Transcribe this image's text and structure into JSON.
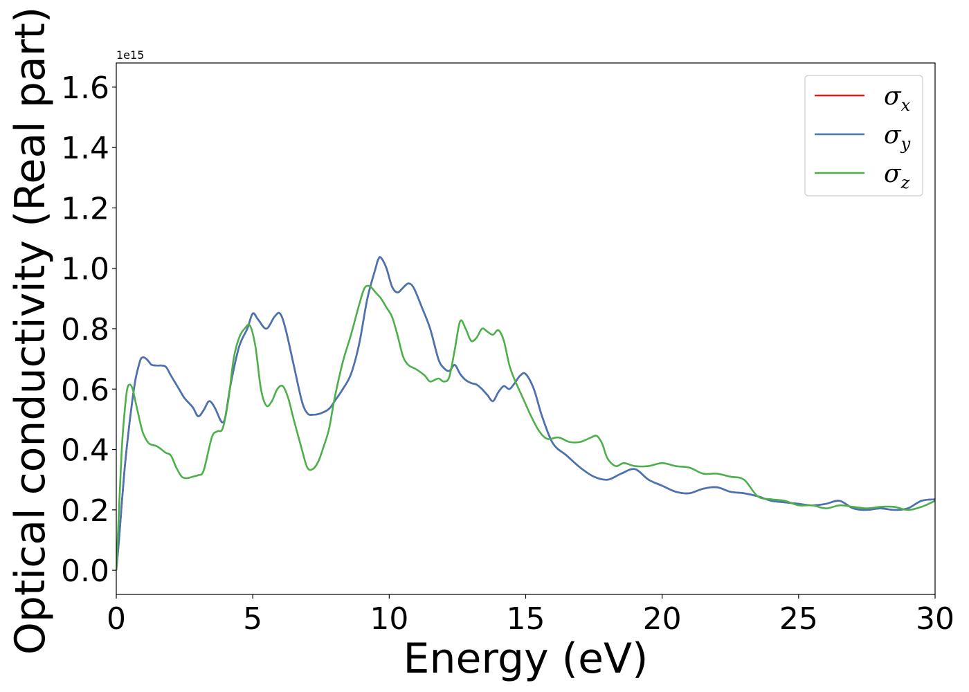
{
  "chart_data": {
    "type": "line",
    "xlabel": "Energy (eV)",
    "ylabel": "Optical conductivity (Real part)",
    "y_offset_label": "1e15",
    "xlim": [
      0,
      30
    ],
    "ylim": [
      -0.08,
      1.68
    ],
    "xticks": [
      0,
      5,
      10,
      15,
      20,
      25,
      30
    ],
    "xtick_labels": [
      "0",
      "5",
      "10",
      "15",
      "20",
      "25",
      "30"
    ],
    "yticks": [
      0.0,
      0.2,
      0.4,
      0.6,
      0.8,
      1.0,
      1.2,
      1.4,
      1.6
    ],
    "ytick_labels": [
      "0.0",
      "0.2",
      "0.4",
      "0.6",
      "0.8",
      "1.0",
      "1.2",
      "1.4",
      "1.6"
    ],
    "grid": false,
    "legend_position": "top-right",
    "series": [
      {
        "name": "σx",
        "legend_base": "σ",
        "legend_sub": "x",
        "color": "#e41a1c",
        "x": [
          0,
          0.1,
          0.2,
          0.3,
          0.4,
          0.5,
          0.6,
          0.7,
          0.8,
          0.9,
          1.0,
          1.1,
          1.2,
          1.3,
          1.5,
          1.8,
          2.0,
          2.3,
          2.5,
          2.8,
          3.0,
          3.2,
          3.4,
          3.6,
          3.8,
          3.9,
          4.0,
          4.2,
          4.5,
          4.8,
          5.0,
          5.2,
          5.5,
          5.8,
          6.0,
          6.2,
          6.5,
          6.8,
          7.0,
          7.2,
          7.5,
          7.8,
          8.0,
          8.3,
          8.6,
          8.9,
          9.2,
          9.5,
          9.6,
          9.7,
          9.9,
          10.1,
          10.3,
          10.5,
          10.7,
          10.9,
          11.2,
          11.5,
          11.8,
          12.0,
          12.2,
          12.4,
          12.6,
          12.8,
          13.0,
          13.2,
          13.4,
          13.6,
          13.8,
          14.0,
          14.2,
          14.4,
          14.6,
          14.8,
          15.0,
          15.3,
          15.6,
          16.0,
          16.5,
          17.0,
          17.5,
          18.0,
          18.5,
          19.0,
          19.5,
          20.0,
          20.5,
          21.0,
          21.5,
          22.0,
          22.5,
          23.0,
          23.5,
          24.0,
          24.5,
          25.0,
          25.5,
          26.0,
          26.5,
          27.0,
          27.5,
          28.0,
          28.5,
          29.0,
          29.5,
          30.0
        ],
        "y": [
          0.0,
          0.1,
          0.22,
          0.33,
          0.42,
          0.5,
          0.57,
          0.63,
          0.67,
          0.7,
          0.705,
          0.7,
          0.69,
          0.68,
          0.678,
          0.675,
          0.645,
          0.6,
          0.57,
          0.54,
          0.51,
          0.53,
          0.56,
          0.54,
          0.5,
          0.49,
          0.51,
          0.62,
          0.74,
          0.8,
          0.85,
          0.83,
          0.8,
          0.84,
          0.85,
          0.8,
          0.68,
          0.56,
          0.52,
          0.515,
          0.52,
          0.535,
          0.56,
          0.6,
          0.65,
          0.75,
          0.9,
          1.0,
          1.03,
          1.035,
          1.0,
          0.94,
          0.92,
          0.935,
          0.95,
          0.935,
          0.87,
          0.8,
          0.7,
          0.67,
          0.66,
          0.68,
          0.65,
          0.63,
          0.62,
          0.615,
          0.6,
          0.58,
          0.56,
          0.59,
          0.61,
          0.6,
          0.62,
          0.645,
          0.65,
          0.6,
          0.51,
          0.42,
          0.38,
          0.34,
          0.31,
          0.3,
          0.32,
          0.335,
          0.3,
          0.28,
          0.26,
          0.255,
          0.27,
          0.275,
          0.26,
          0.255,
          0.245,
          0.23,
          0.225,
          0.22,
          0.215,
          0.22,
          0.23,
          0.205,
          0.2,
          0.205,
          0.2,
          0.205,
          0.23,
          0.235
        ]
      },
      {
        "name": "σy",
        "legend_base": "σ",
        "legend_sub": "y",
        "color": "#4575b4",
        "x": [
          0,
          0.1,
          0.2,
          0.3,
          0.4,
          0.5,
          0.6,
          0.7,
          0.8,
          0.9,
          1.0,
          1.1,
          1.2,
          1.3,
          1.5,
          1.8,
          2.0,
          2.3,
          2.5,
          2.8,
          3.0,
          3.2,
          3.4,
          3.6,
          3.8,
          3.9,
          4.0,
          4.2,
          4.5,
          4.8,
          5.0,
          5.2,
          5.5,
          5.8,
          6.0,
          6.2,
          6.5,
          6.8,
          7.0,
          7.2,
          7.5,
          7.8,
          8.0,
          8.3,
          8.6,
          8.9,
          9.2,
          9.5,
          9.6,
          9.7,
          9.9,
          10.1,
          10.3,
          10.5,
          10.7,
          10.9,
          11.2,
          11.5,
          11.8,
          12.0,
          12.2,
          12.4,
          12.6,
          12.8,
          13.0,
          13.2,
          13.4,
          13.6,
          13.8,
          14.0,
          14.2,
          14.4,
          14.6,
          14.8,
          15.0,
          15.3,
          15.6,
          16.0,
          16.5,
          17.0,
          17.5,
          18.0,
          18.5,
          19.0,
          19.5,
          20.0,
          20.5,
          21.0,
          21.5,
          22.0,
          22.5,
          23.0,
          23.5,
          24.0,
          24.5,
          25.0,
          25.5,
          26.0,
          26.5,
          27.0,
          27.5,
          28.0,
          28.5,
          29.0,
          29.5,
          30.0
        ],
        "y": [
          0.0,
          0.1,
          0.22,
          0.33,
          0.42,
          0.5,
          0.57,
          0.63,
          0.67,
          0.7,
          0.705,
          0.7,
          0.69,
          0.68,
          0.678,
          0.675,
          0.645,
          0.6,
          0.57,
          0.54,
          0.51,
          0.53,
          0.56,
          0.54,
          0.5,
          0.49,
          0.51,
          0.62,
          0.74,
          0.8,
          0.85,
          0.83,
          0.8,
          0.84,
          0.85,
          0.8,
          0.68,
          0.56,
          0.52,
          0.515,
          0.52,
          0.535,
          0.56,
          0.6,
          0.65,
          0.75,
          0.9,
          1.0,
          1.03,
          1.035,
          1.0,
          0.94,
          0.92,
          0.935,
          0.95,
          0.935,
          0.87,
          0.8,
          0.7,
          0.67,
          0.66,
          0.68,
          0.65,
          0.63,
          0.62,
          0.615,
          0.6,
          0.58,
          0.56,
          0.59,
          0.61,
          0.6,
          0.62,
          0.645,
          0.65,
          0.6,
          0.51,
          0.42,
          0.38,
          0.34,
          0.31,
          0.3,
          0.32,
          0.335,
          0.3,
          0.28,
          0.26,
          0.255,
          0.27,
          0.275,
          0.26,
          0.255,
          0.245,
          0.23,
          0.225,
          0.22,
          0.215,
          0.22,
          0.23,
          0.205,
          0.2,
          0.205,
          0.2,
          0.205,
          0.23,
          0.235
        ]
      },
      {
        "name": "σz",
        "legend_base": "σ",
        "legend_sub": "z",
        "color": "#4daf4a",
        "x": [
          0,
          0.1,
          0.2,
          0.3,
          0.4,
          0.5,
          0.6,
          0.7,
          0.8,
          0.9,
          1.0,
          1.2,
          1.5,
          1.8,
          2.0,
          2.2,
          2.4,
          2.6,
          2.8,
          3.0,
          3.2,
          3.5,
          3.7,
          3.9,
          4.1,
          4.3,
          4.5,
          4.7,
          4.9,
          5.1,
          5.3,
          5.5,
          5.7,
          5.9,
          6.1,
          6.3,
          6.5,
          6.8,
          7.0,
          7.2,
          7.4,
          7.6,
          7.8,
          8.0,
          8.3,
          8.6,
          8.9,
          9.1,
          9.3,
          9.5,
          9.7,
          9.9,
          10.1,
          10.3,
          10.5,
          10.7,
          11.0,
          11.3,
          11.5,
          11.8,
          12.0,
          12.2,
          12.4,
          12.6,
          12.8,
          13.0,
          13.2,
          13.4,
          13.6,
          13.8,
          14.0,
          14.2,
          14.4,
          14.6,
          14.9,
          15.2,
          15.5,
          15.8,
          16.2,
          16.6,
          17.0,
          17.4,
          17.6,
          17.8,
          18.0,
          18.3,
          18.6,
          19.0,
          19.5,
          20.0,
          20.5,
          21.0,
          21.5,
          22.0,
          22.5,
          23.0,
          23.5,
          24.0,
          24.5,
          25.0,
          25.5,
          26.0,
          26.5,
          27.0,
          27.5,
          28.0,
          28.5,
          29.0,
          29.5,
          30.0
        ],
        "y": [
          0.0,
          0.2,
          0.4,
          0.52,
          0.6,
          0.615,
          0.6,
          0.56,
          0.52,
          0.48,
          0.45,
          0.42,
          0.41,
          0.39,
          0.38,
          0.34,
          0.31,
          0.305,
          0.31,
          0.315,
          0.33,
          0.44,
          0.46,
          0.47,
          0.56,
          0.7,
          0.77,
          0.8,
          0.81,
          0.74,
          0.6,
          0.545,
          0.56,
          0.6,
          0.61,
          0.57,
          0.5,
          0.4,
          0.34,
          0.335,
          0.36,
          0.41,
          0.47,
          0.57,
          0.69,
          0.78,
          0.88,
          0.935,
          0.94,
          0.92,
          0.9,
          0.87,
          0.84,
          0.78,
          0.71,
          0.68,
          0.665,
          0.645,
          0.625,
          0.635,
          0.625,
          0.64,
          0.73,
          0.825,
          0.8,
          0.76,
          0.77,
          0.8,
          0.79,
          0.78,
          0.795,
          0.76,
          0.68,
          0.63,
          0.57,
          0.51,
          0.46,
          0.435,
          0.44,
          0.425,
          0.425,
          0.44,
          0.445,
          0.42,
          0.37,
          0.345,
          0.355,
          0.345,
          0.345,
          0.355,
          0.345,
          0.34,
          0.32,
          0.32,
          0.31,
          0.3,
          0.245,
          0.235,
          0.23,
          0.215,
          0.215,
          0.205,
          0.215,
          0.21,
          0.205,
          0.21,
          0.21,
          0.2,
          0.21,
          0.23
        ]
      }
    ]
  }
}
